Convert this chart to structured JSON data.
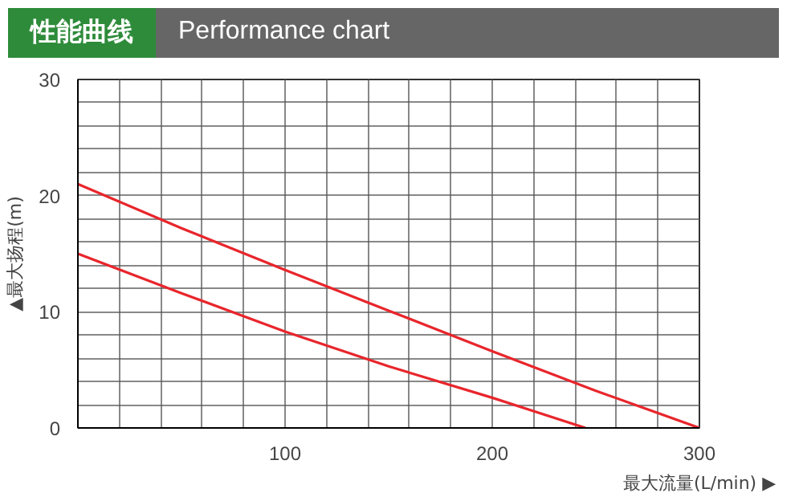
{
  "chart_data": {
    "type": "line",
    "title": "性能曲线",
    "subtitle": "Performance chart",
    "xlabel": "最大流量(L/min) ▶",
    "ylabel": "▲最大扬程(m)",
    "series": [
      {
        "color": "#e8262c",
        "x": [
          0,
          50,
          100,
          150,
          200,
          250,
          300
        ],
        "values": [
          21,
          17.2,
          13.6,
          10.1,
          6.6,
          3.2,
          0
        ]
      },
      {
        "color": "#e8262c",
        "x": [
          0,
          50,
          100,
          150,
          200,
          245
        ],
        "values": [
          15,
          11.6,
          8.3,
          5.3,
          2.6,
          0
        ]
      }
    ],
    "xlim": [
      0,
      300
    ],
    "ylim": [
      0,
      30
    ],
    "xticks": [
      {
        "value": 0,
        "label": null
      },
      {
        "value": 20,
        "label": null
      },
      {
        "value": 40,
        "label": null
      },
      {
        "value": 60,
        "label": null
      },
      {
        "value": 80,
        "label": null
      },
      100,
      {
        "value": 120,
        "label": null
      },
      {
        "value": 140,
        "label": null
      },
      {
        "value": 160,
        "label": null
      },
      {
        "value": 180,
        "label": null
      },
      200,
      {
        "value": 220,
        "label": null
      },
      {
        "value": 240,
        "label": null
      },
      {
        "value": 260,
        "label": null
      },
      {
        "value": 280,
        "label": null
      },
      300
    ],
    "yticks": [
      0,
      {
        "value": 2,
        "label": null
      },
      {
        "value": 4,
        "label": null
      },
      {
        "value": 6,
        "label": null
      },
      {
        "value": 8,
        "label": null
      },
      10,
      {
        "value": 12,
        "label": null
      },
      {
        "value": 14,
        "label": null
      },
      {
        "value": 16,
        "label": null
      },
      {
        "value": 18,
        "label": null
      },
      20,
      {
        "value": 22,
        "label": null
      },
      {
        "value": 24,
        "label": null
      },
      {
        "value": 26,
        "label": null
      },
      {
        "value": 28,
        "label": null
      },
      30
    ],
    "grid": true,
    "marker": "none",
    "line_style": "solid"
  }
}
